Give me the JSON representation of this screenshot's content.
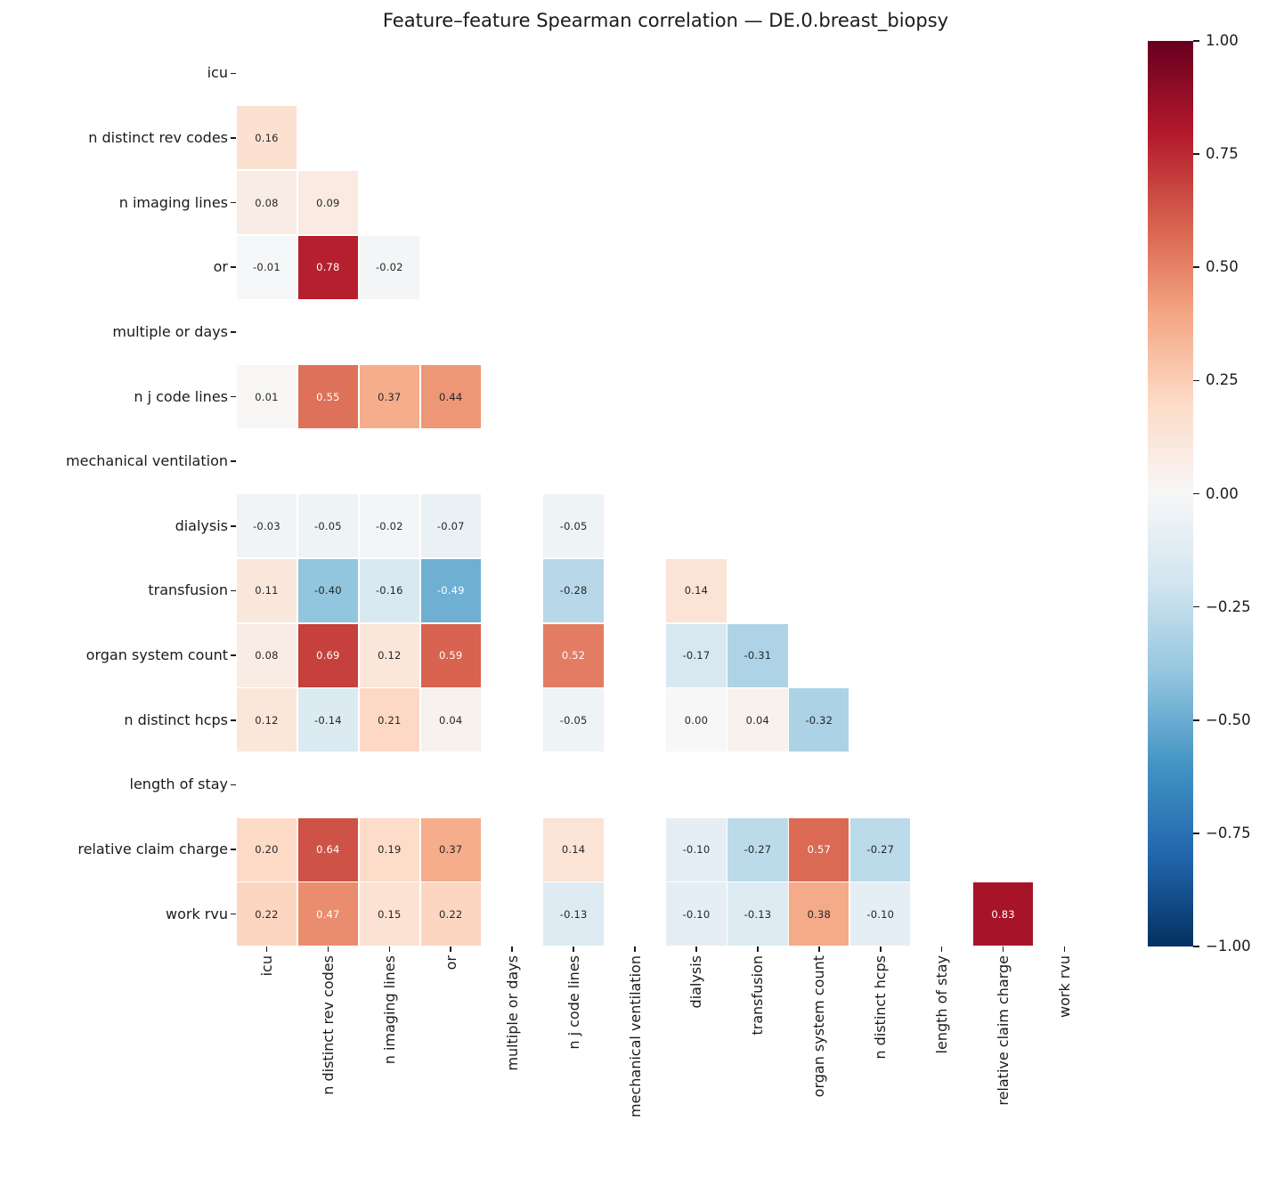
{
  "title": "Feature–feature Spearman correlation — DE.0.breast_biopsy",
  "chart_data": {
    "type": "heatmap",
    "mask": "upper-triangle-and-diagonal-hidden",
    "labels": [
      "icu",
      "n distinct rev codes",
      "n imaging lines",
      "or",
      "multiple or days",
      "n j code lines",
      "mechanical ventilation",
      "dialysis",
      "transfusion",
      "organ system count",
      "n distinct hcps",
      "length of stay",
      "relative claim charge",
      "work rvu"
    ],
    "matrix": [
      [
        null,
        null,
        null,
        null,
        null,
        null,
        null,
        null,
        null,
        null,
        null,
        null,
        null,
        null
      ],
      [
        0.16,
        null,
        null,
        null,
        null,
        null,
        null,
        null,
        null,
        null,
        null,
        null,
        null,
        null
      ],
      [
        0.08,
        0.09,
        null,
        null,
        null,
        null,
        null,
        null,
        null,
        null,
        null,
        null,
        null,
        null
      ],
      [
        -0.01,
        0.78,
        -0.02,
        null,
        null,
        null,
        null,
        null,
        null,
        null,
        null,
        null,
        null,
        null
      ],
      [
        null,
        null,
        null,
        null,
        null,
        null,
        null,
        null,
        null,
        null,
        null,
        null,
        null,
        null
      ],
      [
        0.01,
        0.55,
        0.37,
        0.44,
        null,
        null,
        null,
        null,
        null,
        null,
        null,
        null,
        null,
        null
      ],
      [
        null,
        null,
        null,
        null,
        null,
        null,
        null,
        null,
        null,
        null,
        null,
        null,
        null,
        null
      ],
      [
        -0.03,
        -0.05,
        -0.02,
        -0.07,
        null,
        -0.05,
        null,
        null,
        null,
        null,
        null,
        null,
        null,
        null
      ],
      [
        0.11,
        -0.4,
        -0.16,
        -0.49,
        null,
        -0.28,
        null,
        0.14,
        null,
        null,
        null,
        null,
        null,
        null
      ],
      [
        0.08,
        0.69,
        0.12,
        0.59,
        null,
        0.52,
        null,
        -0.17,
        -0.31,
        null,
        null,
        null,
        null,
        null
      ],
      [
        0.12,
        -0.14,
        0.21,
        0.04,
        null,
        -0.05,
        null,
        0.0,
        0.04,
        -0.32,
        null,
        null,
        null,
        null
      ],
      [
        null,
        null,
        null,
        null,
        null,
        null,
        null,
        null,
        null,
        null,
        null,
        null,
        null,
        null
      ],
      [
        0.2,
        0.64,
        0.19,
        0.37,
        null,
        0.14,
        null,
        -0.1,
        -0.27,
        0.57,
        -0.27,
        null,
        null,
        null
      ],
      [
        0.22,
        0.47,
        0.15,
        0.22,
        null,
        -0.13,
        null,
        -0.1,
        -0.13,
        0.38,
        -0.1,
        null,
        0.83,
        null
      ]
    ],
    "vmin": -1,
    "vmax": 1,
    "value_format_decimals": 2,
    "colormap": {
      "name": "RdBu_r",
      "anchors": [
        {
          "v": -1.0,
          "c": "#053061"
        },
        {
          "v": -0.8,
          "c": "#2166ac"
        },
        {
          "v": -0.6,
          "c": "#4393c4"
        },
        {
          "v": -0.4,
          "c": "#92c5de"
        },
        {
          "v": -0.2,
          "c": "#d1e5f0"
        },
        {
          "v": 0.0,
          "c": "#f7f7f7"
        },
        {
          "v": 0.2,
          "c": "#fddbc7"
        },
        {
          "v": 0.4,
          "c": "#f4a582"
        },
        {
          "v": 0.6,
          "c": "#d6604d"
        },
        {
          "v": 0.8,
          "c": "#b2182b"
        },
        {
          "v": 1.0,
          "c": "#67001f"
        }
      ]
    },
    "annotation_colors": {
      "dark": "#262626",
      "light": "#ffffff",
      "luminance_threshold": 0.408
    },
    "colorbar": {
      "ticks": [
        {
          "value": 1.0,
          "label": "1.00"
        },
        {
          "value": 0.75,
          "label": "0.75"
        },
        {
          "value": 0.5,
          "label": "0.50"
        },
        {
          "value": 0.25,
          "label": "0.25"
        },
        {
          "value": 0.0,
          "label": "0.00"
        },
        {
          "value": -0.25,
          "label": "−0.25"
        },
        {
          "value": -0.5,
          "label": "−0.50"
        },
        {
          "value": -0.75,
          "label": "−0.75"
        },
        {
          "value": -1.0,
          "label": "−1.00"
        }
      ]
    }
  }
}
